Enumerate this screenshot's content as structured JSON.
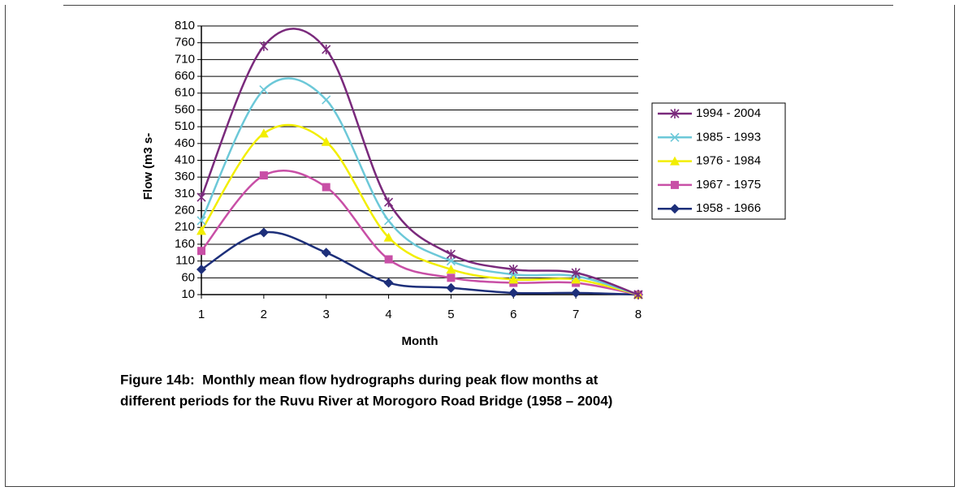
{
  "chart_data": {
    "type": "line",
    "x_label": "Month",
    "y_label": "Flow (m3 s-",
    "caption": [
      "Figure 14b:  Monthly mean flow hydrographs during peak flow months at",
      "different periods for the Ruvu River at Morogoro Road Bridge (1958 – 2004)"
    ],
    "x": [
      1,
      2,
      3,
      4,
      5,
      6,
      7,
      8
    ],
    "xlim": [
      1,
      8
    ],
    "xticks": [
      1,
      2,
      3,
      4,
      5,
      6,
      7,
      8
    ],
    "ylim": [
      10,
      810
    ],
    "yticks": [
      10,
      60,
      110,
      160,
      210,
      260,
      310,
      360,
      410,
      460,
      510,
      560,
      610,
      660,
      710,
      760,
      810
    ],
    "grid": true,
    "legend": "right",
    "series": [
      {
        "name": "1994 - 2004",
        "color": "#7a2a7c",
        "marker": "asterisk",
        "values": [
          300,
          750,
          740,
          285,
          130,
          85,
          75,
          10
        ]
      },
      {
        "name": "1985 - 1993",
        "color": "#6cc8d8",
        "marker": "x",
        "values": [
          230,
          620,
          590,
          230,
          110,
          70,
          65,
          10
        ]
      },
      {
        "name": "1976 - 1984",
        "color": "#f2ee00",
        "marker": "triangle",
        "values": [
          200,
          490,
          465,
          180,
          85,
          55,
          55,
          10
        ]
      },
      {
        "name": "1967 - 1975",
        "color": "#c84fa6",
        "marker": "square",
        "values": [
          140,
          365,
          330,
          115,
          60,
          45,
          45,
          10
        ]
      },
      {
        "name": "1958 - 1966",
        "color": "#1d2f7a",
        "marker": "diamond",
        "values": [
          85,
          195,
          135,
          45,
          30,
          15,
          15,
          10
        ]
      }
    ]
  }
}
